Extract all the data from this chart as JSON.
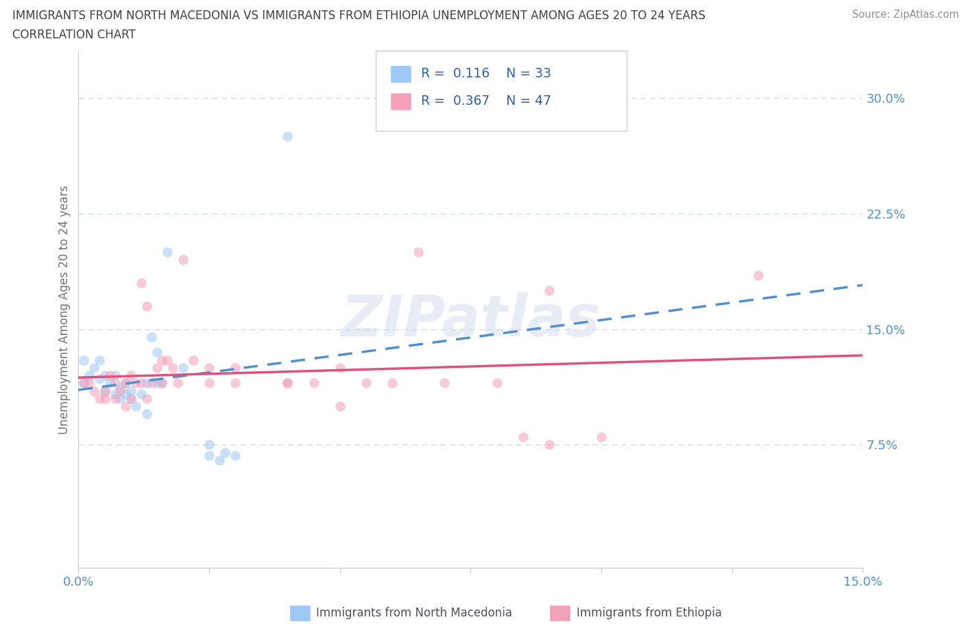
{
  "title_line1": "IMMIGRANTS FROM NORTH MACEDONIA VS IMMIGRANTS FROM ETHIOPIA UNEMPLOYMENT AMONG AGES 20 TO 24 YEARS",
  "title_line2": "CORRELATION CHART",
  "source_text": "Source: ZipAtlas.com",
  "ylabel_label": "Unemployment Among Ages 20 to 24 years",
  "legend_entries": [
    {
      "label": "Immigrants from North Macedonia",
      "R": "0.116",
      "N": "33",
      "color": "#a8c8f8"
    },
    {
      "label": "Immigrants from Ethiopia",
      "R": "0.367",
      "N": "47",
      "color": "#f4a0b8"
    }
  ],
  "watermark": "ZIPatlas",
  "xlim": [
    0.0,
    0.15
  ],
  "ylim": [
    -0.005,
    0.33
  ],
  "yticks": [
    0.075,
    0.15,
    0.225,
    0.3
  ],
  "xticks": [
    0.0,
    0.025,
    0.05,
    0.075,
    0.1,
    0.125,
    0.15
  ],
  "macedonia_scatter": [
    [
      0.001,
      0.13
    ],
    [
      0.001,
      0.115
    ],
    [
      0.002,
      0.12
    ],
    [
      0.003,
      0.125
    ],
    [
      0.004,
      0.13
    ],
    [
      0.004,
      0.118
    ],
    [
      0.005,
      0.11
    ],
    [
      0.005,
      0.12
    ],
    [
      0.006,
      0.115
    ],
    [
      0.007,
      0.12
    ],
    [
      0.007,
      0.108
    ],
    [
      0.008,
      0.112
    ],
    [
      0.008,
      0.105
    ],
    [
      0.009,
      0.115
    ],
    [
      0.009,
      0.108
    ],
    [
      0.01,
      0.11
    ],
    [
      0.01,
      0.105
    ],
    [
      0.011,
      0.1
    ],
    [
      0.012,
      0.108
    ],
    [
      0.013,
      0.095
    ],
    [
      0.013,
      0.115
    ],
    [
      0.014,
      0.145
    ],
    [
      0.015,
      0.135
    ],
    [
      0.015,
      0.115
    ],
    [
      0.016,
      0.115
    ],
    [
      0.017,
      0.2
    ],
    [
      0.02,
      0.125
    ],
    [
      0.025,
      0.075
    ],
    [
      0.025,
      0.068
    ],
    [
      0.027,
      0.065
    ],
    [
      0.028,
      0.07
    ],
    [
      0.03,
      0.068
    ],
    [
      0.04,
      0.275
    ]
  ],
  "ethiopia_scatter": [
    [
      0.001,
      0.115
    ],
    [
      0.002,
      0.115
    ],
    [
      0.003,
      0.11
    ],
    [
      0.004,
      0.105
    ],
    [
      0.005,
      0.11
    ],
    [
      0.005,
      0.105
    ],
    [
      0.006,
      0.12
    ],
    [
      0.007,
      0.105
    ],
    [
      0.007,
      0.115
    ],
    [
      0.008,
      0.11
    ],
    [
      0.009,
      0.1
    ],
    [
      0.009,
      0.115
    ],
    [
      0.01,
      0.105
    ],
    [
      0.01,
      0.12
    ],
    [
      0.011,
      0.115
    ],
    [
      0.012,
      0.115
    ],
    [
      0.012,
      0.18
    ],
    [
      0.013,
      0.105
    ],
    [
      0.013,
      0.165
    ],
    [
      0.014,
      0.115
    ],
    [
      0.015,
      0.125
    ],
    [
      0.016,
      0.115
    ],
    [
      0.016,
      0.13
    ],
    [
      0.017,
      0.13
    ],
    [
      0.018,
      0.125
    ],
    [
      0.019,
      0.115
    ],
    [
      0.02,
      0.195
    ],
    [
      0.022,
      0.13
    ],
    [
      0.025,
      0.115
    ],
    [
      0.025,
      0.125
    ],
    [
      0.03,
      0.115
    ],
    [
      0.03,
      0.125
    ],
    [
      0.04,
      0.115
    ],
    [
      0.04,
      0.115
    ],
    [
      0.045,
      0.115
    ],
    [
      0.05,
      0.1
    ],
    [
      0.05,
      0.125
    ],
    [
      0.055,
      0.115
    ],
    [
      0.06,
      0.115
    ],
    [
      0.065,
      0.2
    ],
    [
      0.07,
      0.115
    ],
    [
      0.08,
      0.115
    ],
    [
      0.085,
      0.08
    ],
    [
      0.09,
      0.175
    ],
    [
      0.09,
      0.075
    ],
    [
      0.1,
      0.08
    ],
    [
      0.13,
      0.185
    ]
  ],
  "scatter_size": 110,
  "scatter_alpha": 0.55,
  "mac_color": "#9ec8f5",
  "mac_line_color": "#5090d0",
  "eth_color": "#f4a0b8",
  "eth_line_color": "#e0507a",
  "background_color": "#ffffff",
  "grid_color": "#d0d8e8",
  "title_color": "#404040",
  "tick_color": "#5090d0",
  "axis_color": "#c0c8d8",
  "legend_R_N_color": "#3060b0",
  "source_color": "#909090"
}
